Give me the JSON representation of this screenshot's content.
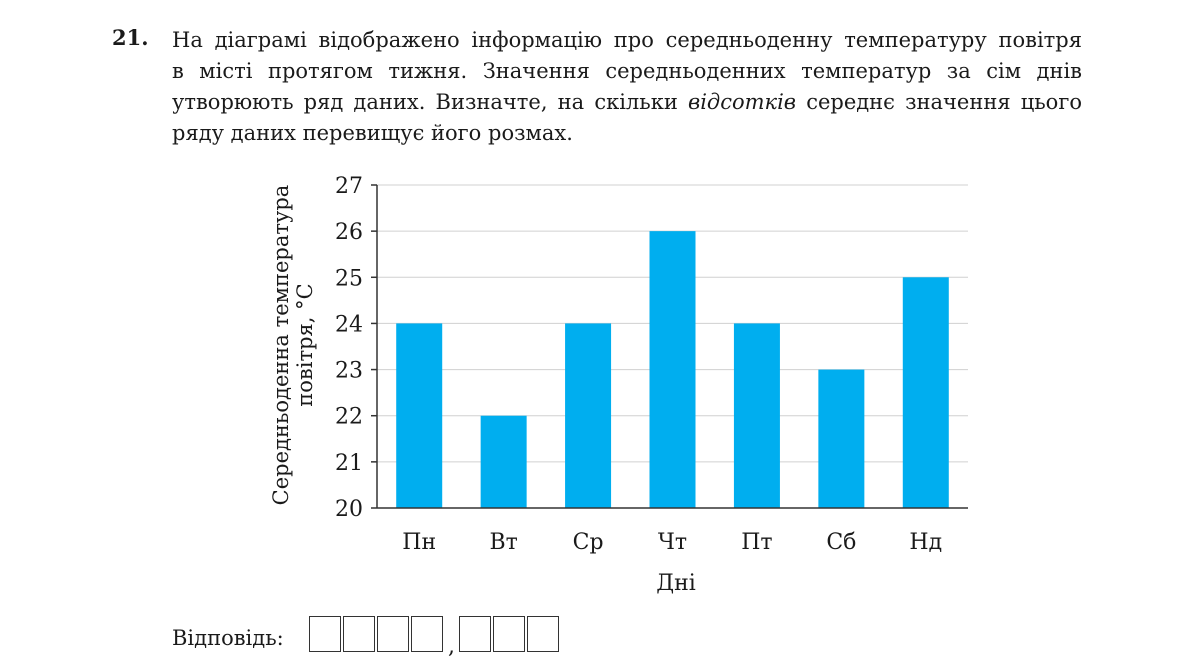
{
  "task": {
    "number": "21.",
    "line1": "На діаграмі відображено інформацію про середньоденну температуру повітря",
    "line2": "в місті протягом тижня. Значення середньоденних температур за сім днів",
    "line3": "утворюють ряд даних. Визначте, на скільки",
    "line3_emphasis": "відсотків",
    "line3_end": "середнє значення цього",
    "line4": "ряду даних перевищує його розмах."
  },
  "chart_data": {
    "type": "bar",
    "categories": [
      "Пн",
      "Вт",
      "Ср",
      "Чт",
      "Пт",
      "Сб",
      "Нд"
    ],
    "values": [
      24,
      22,
      24,
      26,
      24,
      23,
      25
    ],
    "xlabel": "Дні",
    "ylabel_line1": "Середньоденна температура",
    "ylabel_line2": "повітря, °C",
    "ylim": [
      20,
      27
    ],
    "yticks": [
      20,
      21,
      22,
      23,
      24,
      25,
      26,
      27
    ],
    "grid": true,
    "bar_color": "#00aeef",
    "grid_color": "#d0d0d0",
    "axis_color": "#333333"
  },
  "answer": {
    "label": "Відповідь:",
    "comma": ",",
    "integer_boxes": 4,
    "decimal_boxes": 3
  }
}
